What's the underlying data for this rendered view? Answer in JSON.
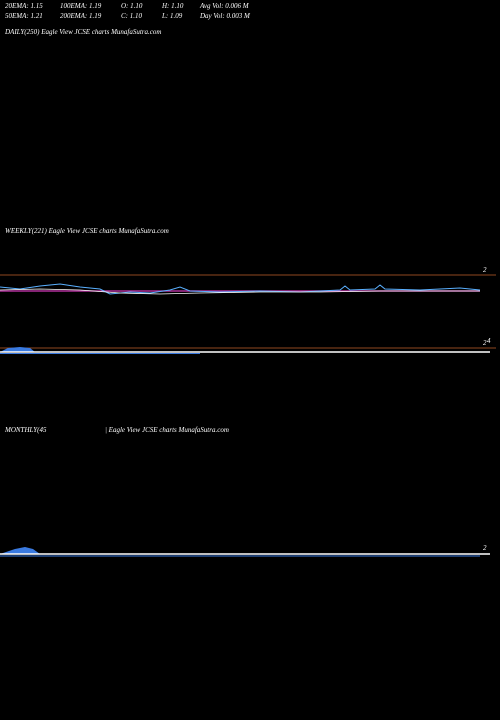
{
  "header": {
    "row1": [
      "20EMA: 1.15",
      "100EMA: 1.19",
      "O: 1.10",
      "H: 1.10",
      "Avg Vol: 0.006  M"
    ],
    "row2": [
      "50EMA: 1.21",
      "200EMA: 1.19",
      "C: 1.10",
      "L: 1.09",
      "Day Vol: 0.003 M"
    ]
  },
  "daily": {
    "label": "DAILY(250) Eagle   View  JCSE charts MunafaSutra.com"
  },
  "weekly": {
    "label": "WEEKLY(221) Eagle   View  JCSE charts MunafaSutra.com",
    "price_tag": "2",
    "volume_tags": [
      "2",
      "4"
    ]
  },
  "monthly": {
    "label": "MONTHLY(45",
    "label_rest": "| Eagle   View  JCSE charts MunafaSutra.com",
    "price_tag": "2"
  }
}
